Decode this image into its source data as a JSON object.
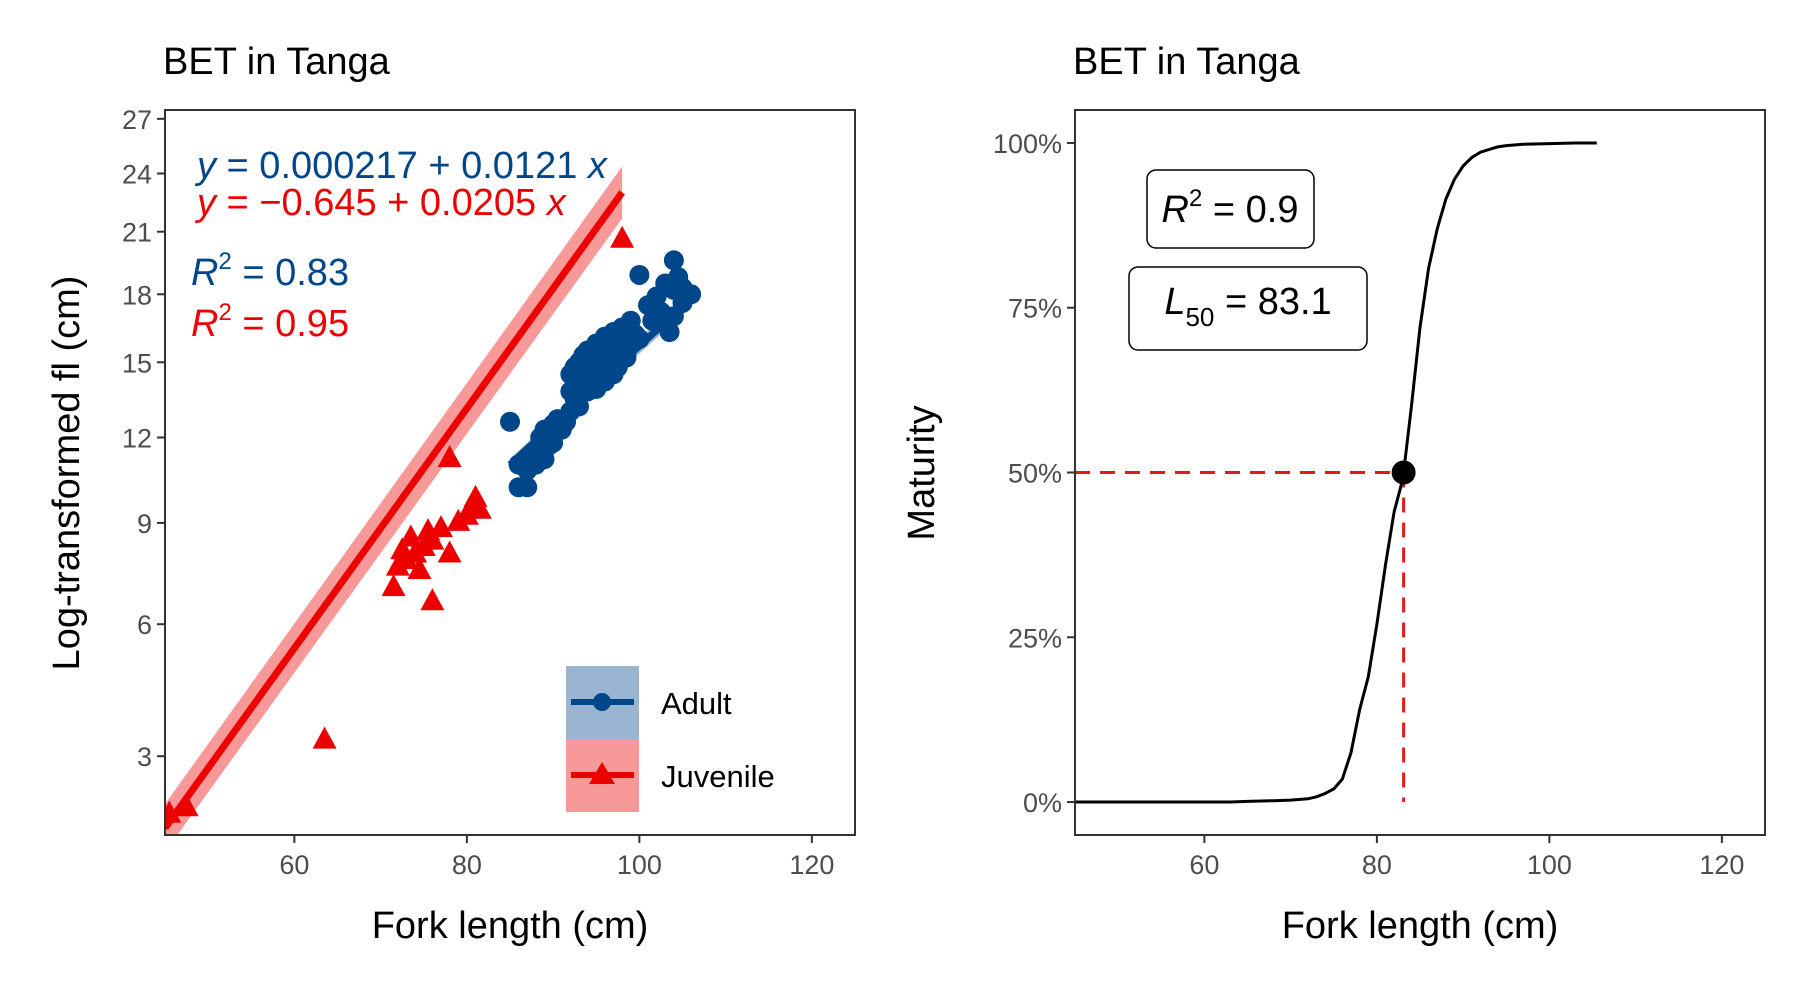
{
  "chart_data": [
    {
      "type": "scatter",
      "title": "BET in Tanga",
      "xlabel": "Fork length (cm)",
      "ylabel": "Log-transformed fl (cm)",
      "xlim": [
        45,
        125
      ],
      "ylim": [
        1.7,
        27.5
      ],
      "x_ticks": [
        60,
        80,
        100,
        120
      ],
      "y_ticks": [
        3,
        6,
        9,
        12,
        15,
        18,
        21,
        24,
        27
      ],
      "y_scale": "sqrt",
      "grid": false,
      "legend_position": "bottom-right",
      "colors": {
        "Adult": "#00468B",
        "Juvenile": "#ED0000"
      },
      "annotations": {
        "adult_eq": {
          "lhs": "y",
          "eq": " = 0.000217 + 0.0121 ",
          "var": "x"
        },
        "juvenile_eq": {
          "lhs": "y",
          "eq": " = −0.645 + 0.0205 ",
          "var": "x"
        },
        "adult_r2": {
          "sym": "R",
          "sup": "2",
          "val": " = 0.83"
        },
        "juvenile_r2": {
          "sym": "R",
          "sup": "2",
          "val": " = 0.95"
        }
      },
      "series": [
        {
          "name": "Adult",
          "marker": "circle",
          "line": {
            "x": [
              85,
              106
            ],
            "y": [
              11.0,
              17.8
            ]
          },
          "points": [
            [
              85,
              12.6
            ],
            [
              86,
              10.2
            ],
            [
              86,
              11.0
            ],
            [
              87,
              10.2
            ],
            [
              87,
              10.8
            ],
            [
              87.5,
              11.3
            ],
            [
              88,
              11.5
            ],
            [
              88,
              11.0
            ],
            [
              88.5,
              12.0
            ],
            [
              89,
              11.2
            ],
            [
              89,
              12.3
            ],
            [
              89.5,
              11.7
            ],
            [
              90,
              12.5
            ],
            [
              90,
              11.8
            ],
            [
              90.5,
              12.7
            ],
            [
              91,
              12.3
            ],
            [
              91.5,
              12.6
            ],
            [
              92,
              13.0
            ],
            [
              92,
              13.8
            ],
            [
              92,
              14.5
            ],
            [
              92.5,
              13.5
            ],
            [
              92.5,
              14.8
            ],
            [
              93,
              15.0
            ],
            [
              93,
              14.0
            ],
            [
              93,
              13.2
            ],
            [
              93.5,
              14.3
            ],
            [
              93.5,
              15.3
            ],
            [
              94,
              14.6
            ],
            [
              94,
              13.8
            ],
            [
              94,
              15.5
            ],
            [
              94.5,
              14.2
            ],
            [
              94.5,
              15.1
            ],
            [
              95,
              15.8
            ],
            [
              95,
              14.9
            ],
            [
              95,
              13.9
            ],
            [
              95.5,
              15.3
            ],
            [
              95.5,
              14.5
            ],
            [
              96,
              16.1
            ],
            [
              96,
              15.0
            ],
            [
              96,
              14.2
            ],
            [
              96.5,
              15.6
            ],
            [
              96.5,
              14.7
            ],
            [
              97,
              16.3
            ],
            [
              97,
              15.2
            ],
            [
              97,
              14.5
            ],
            [
              97.5,
              15.9
            ],
            [
              97.5,
              14.8
            ],
            [
              98,
              16.5
            ],
            [
              98,
              15.5
            ],
            [
              98.5,
              15.2
            ],
            [
              98.5,
              16.3
            ],
            [
              99,
              16.8
            ],
            [
              99,
              15.8
            ],
            [
              99.5,
              16.2
            ],
            [
              100,
              18.9
            ],
            [
              100,
              16.0
            ],
            [
              101,
              17.5
            ],
            [
              101.5,
              16.8
            ],
            [
              102,
              17.9
            ],
            [
              102.5,
              17.2
            ],
            [
              103,
              18.5
            ],
            [
              103,
              17.0
            ],
            [
              103.5,
              16.3
            ],
            [
              104,
              19.6
            ],
            [
              104,
              18.2
            ],
            [
              104,
              17.0
            ],
            [
              104.5,
              18.8
            ],
            [
              105,
              17.6
            ],
            [
              105,
              18.3
            ],
            [
              106,
              18.0
            ]
          ]
        },
        {
          "name": "Juvenile",
          "marker": "triangle",
          "line": {
            "x": [
              45,
              98
            ],
            "y": [
              1.8,
              23.0
            ]
          },
          "points": [
            [
              45.5,
              2.0
            ],
            [
              47.5,
              2.1
            ],
            [
              63.5,
              3.3
            ],
            [
              71.5,
              7.0
            ],
            [
              72,
              7.6
            ],
            [
              72.5,
              8.1
            ],
            [
              73,
              7.8
            ],
            [
              73.5,
              8.5
            ],
            [
              74,
              8.0
            ],
            [
              74.5,
              7.5
            ],
            [
              75,
              8.2
            ],
            [
              75.5,
              8.7
            ],
            [
              76,
              6.6
            ],
            [
              76,
              8.4
            ],
            [
              77,
              8.8
            ],
            [
              78,
              8.0
            ],
            [
              78,
              11.2
            ],
            [
              79,
              9.0
            ],
            [
              80,
              9.2
            ],
            [
              80.5,
              9.5
            ],
            [
              81,
              9.8
            ],
            [
              81.5,
              9.4
            ],
            [
              98,
              20.6
            ]
          ]
        }
      ]
    },
    {
      "type": "line",
      "title": "BET in Tanga",
      "xlabel": "Fork length (cm)",
      "ylabel": "Maturity",
      "xlim": [
        45,
        125
      ],
      "ylim": [
        -0.05,
        1.05
      ],
      "x_ticks": [
        60,
        80,
        100,
        120
      ],
      "y_ticks": [
        0,
        0.25,
        0.5,
        0.75,
        1.0
      ],
      "y_tick_labels": [
        "0%",
        "25%",
        "50%",
        "75%",
        "100%"
      ],
      "grid": false,
      "annotations": {
        "r2": {
          "sym": "R",
          "sup": "2",
          "val": " = 0.9"
        },
        "l50": {
          "sym": "L",
          "sub": "50",
          "val": " = 83.1"
        }
      },
      "l50_point": {
        "x": 83.1,
        "y": 0.5
      },
      "colors": {
        "curve": "#000000",
        "reference": "#E41A1C"
      },
      "curve": {
        "x": [
          45,
          50,
          55,
          60,
          63,
          65,
          68,
          70,
          72,
          73,
          74,
          75,
          76,
          77,
          78,
          79,
          80,
          81,
          82,
          83,
          83.1,
          84,
          85,
          86,
          87,
          88,
          89,
          90,
          91,
          92,
          93,
          94,
          95,
          97,
          100,
          103,
          105.5
        ],
        "y": [
          0,
          0,
          0,
          0,
          0,
          0.001,
          0.002,
          0.003,
          0.005,
          0.008,
          0.013,
          0.02,
          0.035,
          0.075,
          0.14,
          0.19,
          0.27,
          0.36,
          0.44,
          0.49,
          0.5,
          0.6,
          0.72,
          0.81,
          0.87,
          0.915,
          0.945,
          0.965,
          0.978,
          0.986,
          0.99,
          0.994,
          0.996,
          0.998,
          0.999,
          1.0,
          1.0
        ]
      }
    }
  ]
}
